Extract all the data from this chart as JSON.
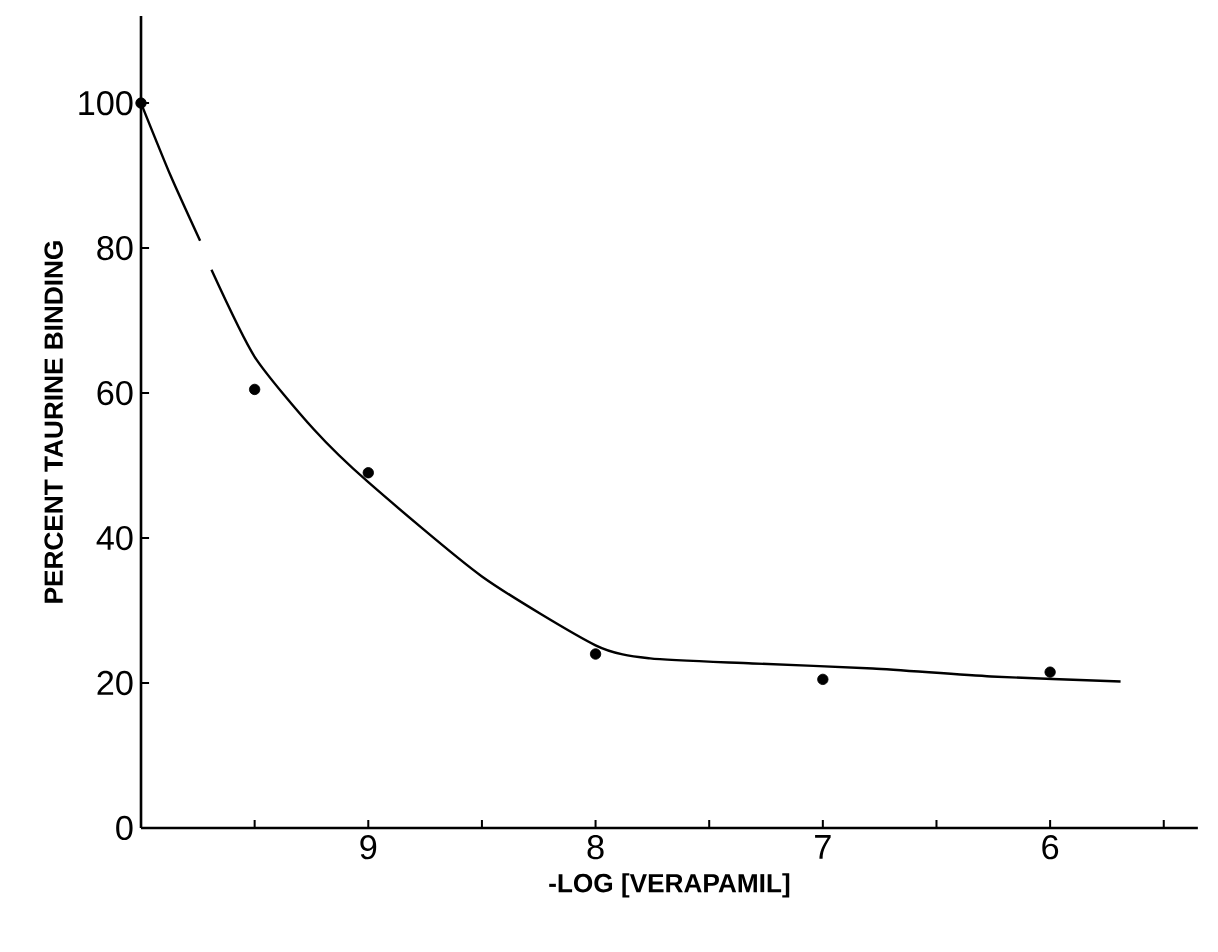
{
  "chart_data": {
    "type": "scatter",
    "xlabel": "-LOG [VERAPAMIL]",
    "ylabel": "PERCENT  TAURINE  BINDING",
    "xlim": [
      10,
      5.35
    ],
    "ylim": [
      0,
      112
    ],
    "xticks": [
      {
        "value": 9.5,
        "label": null
      },
      9,
      {
        "value": 8.5,
        "label": null
      },
      8,
      {
        "value": 7.5,
        "label": null
      },
      7,
      {
        "value": 6.5,
        "label": null
      },
      6,
      {
        "value": 5.5,
        "label": null
      }
    ],
    "yticks": [
      0,
      20,
      40,
      60,
      80,
      100
    ],
    "series": [
      {
        "color": "#000000",
        "marker": "circle",
        "x": [
          10,
          9.5,
          9.0,
          8.0,
          7.0,
          6.0
        ],
        "values": [
          100,
          60.5,
          49,
          24,
          20.5,
          21.5
        ]
      },
      {
        "type": "line",
        "color": "#000000",
        "marker": "none",
        "line_style": "solid",
        "x": [
          10,
          9.87,
          9.74,
          9.72,
          9.69,
          9.5,
          9.24,
          9.0,
          8.5,
          8.0,
          7.76,
          7.31,
          6.78,
          6.26,
          5.69
        ],
        "values": [
          100,
          90,
          81,
          null,
          77,
          65,
          55,
          47.7,
          34.7,
          25.2,
          23.4,
          22.7,
          22,
          20.9,
          20.2
        ]
      }
    ]
  }
}
